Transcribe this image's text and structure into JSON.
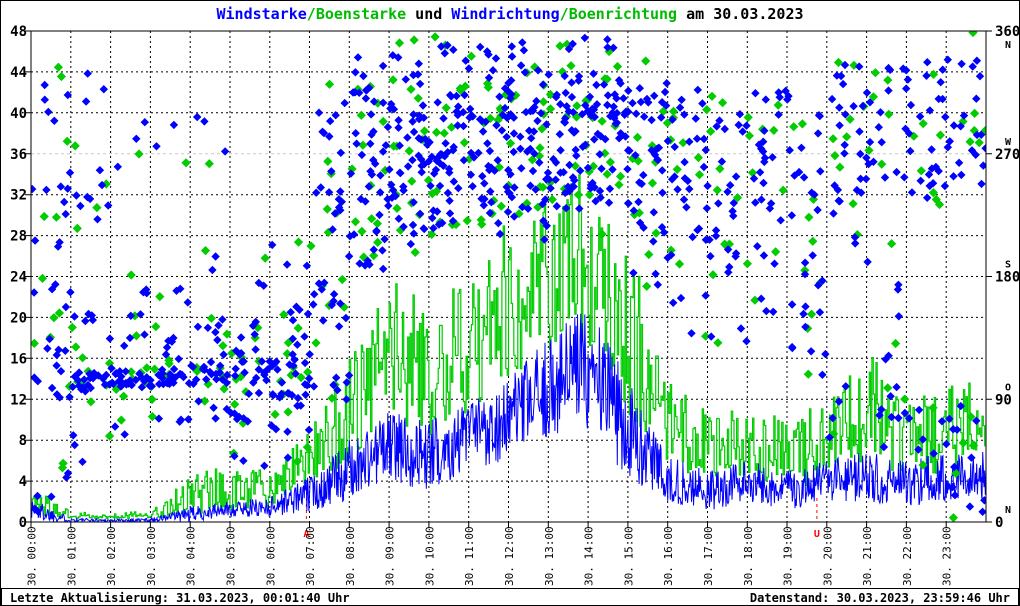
{
  "title": {
    "segments": [
      {
        "text": "Windstarke",
        "color": "#0000ff"
      },
      {
        "text": "/",
        "color": "#00bb00"
      },
      {
        "text": "Boenstarke",
        "color": "#00bb00"
      },
      {
        "text": " und ",
        "color": "#000000"
      },
      {
        "text": "Windrichtung",
        "color": "#0000ff"
      },
      {
        "text": "/",
        "color": "#00bb00"
      },
      {
        "text": "Boenrichtung",
        "color": "#00bb00"
      },
      {
        "text": " am 30.03.2023",
        "color": "#000000"
      }
    ]
  },
  "status_bar": {
    "left": "Letzte Aktualisierung: 31.03.2023, 00:01:40 Uhr",
    "right": "Datenstand: 30.03.2023, 23:59:46 Uhr"
  },
  "chart_data": {
    "type": "line+scatter",
    "date": "30.03.2023",
    "colors": {
      "wind": "#0000ff",
      "gust": "#00cc00",
      "grid": "#000000",
      "grid_light": "#c8c8c8",
      "sun_marker": "#ff0000",
      "axis": "#000000"
    },
    "left_axis": {
      "min": 0,
      "max": 48,
      "tick_step": 4,
      "tick_values": [
        0,
        4,
        8,
        12,
        16,
        20,
        24,
        28,
        32,
        36,
        40,
        44,
        48
      ]
    },
    "right_axis": {
      "min": 0,
      "max": 360,
      "ticks": [
        {
          "value": 360,
          "label": "360",
          "compass": "N",
          "compass_pos": "below"
        },
        {
          "value": 270,
          "label": "270",
          "compass": "W",
          "compass_pos": "above"
        },
        {
          "value": 180,
          "label": "180",
          "compass": "S",
          "compass_pos": "above"
        },
        {
          "value": 90,
          "label": "90",
          "compass": "O",
          "compass_pos": "above"
        },
        {
          "value": 0,
          "label": "0",
          "compass": "N",
          "compass_pos": "above"
        }
      ]
    },
    "x_axis": {
      "labels": [
        "30. 00:00",
        "30. 01:00",
        "30. 02:00",
        "30. 03:00",
        "30. 04:00",
        "30. 05:00",
        "30. 06:00",
        "30. 07:00",
        "30. 08:00",
        "30. 09:00",
        "30. 10:00",
        "30. 11:00",
        "30. 12:00",
        "30. 13:00",
        "30. 14:00",
        "30. 15:00",
        "30. 16:00",
        "30. 17:00",
        "30. 18:00",
        "30. 19:00",
        "30. 20:00",
        "30. 21:00",
        "30. 22:00",
        "30. 23:00"
      ]
    },
    "h_grid_values": [
      4,
      8,
      12,
      16,
      20,
      24,
      28,
      32,
      40,
      44
    ],
    "h_grid_light_values": [
      36
    ],
    "sun_markers": [
      {
        "label": "A",
        "hour": 6.92
      },
      {
        "label": "U",
        "hour": 19.75
      }
    ],
    "series": [
      {
        "name": "Windstarke",
        "type": "line",
        "color": "#0000ff",
        "axis": "left"
      },
      {
        "name": "Boenstarke",
        "type": "line",
        "color": "#00cc00",
        "axis": "left"
      },
      {
        "name": "Windrichtung",
        "type": "scatter",
        "color": "#0000ff",
        "axis": "right"
      },
      {
        "name": "Boenrichtung",
        "type": "scatter",
        "color": "#00cc00",
        "axis": "right"
      }
    ],
    "render_seed": 1337,
    "hourly": [
      {
        "hour": 0,
        "wind": [
          0,
          2.5
        ],
        "gust": [
          0.5,
          4
        ],
        "dirs": [
          [
            120,
            45,
            14
          ],
          [
            240,
            30,
            10
          ],
          [
            20,
            20,
            6
          ],
          [
            320,
            30,
            5
          ],
          [
            175,
            15,
            4
          ]
        ]
      },
      {
        "hour": 1,
        "wind": [
          0,
          0.4
        ],
        "gust": [
          0,
          1
        ],
        "dirs": [
          [
            105,
            8,
            22
          ],
          [
            150,
            20,
            6
          ],
          [
            240,
            20,
            8
          ],
          [
            60,
            15,
            3
          ],
          [
            300,
            40,
            3
          ]
        ]
      },
      {
        "hour": 2,
        "wind": [
          0,
          0.3
        ],
        "gust": [
          0,
          0.8
        ],
        "dirs": [
          [
            105,
            7,
            24
          ],
          [
            140,
            15,
            5
          ],
          [
            170,
            10,
            3
          ],
          [
            280,
            25,
            3
          ],
          [
            60,
            10,
            2
          ]
        ]
      },
      {
        "hour": 3,
        "wind": [
          0,
          0.4
        ],
        "gust": [
          0,
          1.2
        ],
        "dirs": [
          [
            105,
            8,
            20
          ],
          [
            130,
            12,
            6
          ],
          [
            75,
            10,
            4
          ],
          [
            170,
            8,
            3
          ],
          [
            285,
            15,
            2
          ]
        ]
      },
      {
        "hour": 4,
        "wind": [
          0,
          1.5
        ],
        "gust": [
          0.5,
          5
        ],
        "dirs": [
          [
            110,
            10,
            20
          ],
          [
            145,
            12,
            6
          ],
          [
            85,
            8,
            4
          ],
          [
            290,
            20,
            3
          ],
          [
            190,
            10,
            2
          ]
        ]
      },
      {
        "hour": 5,
        "wind": [
          0.5,
          2
        ],
        "gust": [
          1,
          5.5
        ],
        "dirs": [
          [
            110,
            15,
            18
          ],
          [
            80,
            12,
            6
          ],
          [
            140,
            15,
            6
          ],
          [
            45,
            10,
            3
          ],
          [
            175,
            10,
            2
          ]
        ]
      },
      {
        "hour": 6,
        "wind": [
          0.5,
          2.5
        ],
        "gust": [
          1.5,
          5
        ],
        "dirs": [
          [
            105,
            25,
            26
          ],
          [
            150,
            20,
            8
          ],
          [
            60,
            15,
            5
          ],
          [
            200,
            15,
            3
          ]
        ]
      },
      {
        "hour": 7,
        "wind": [
          1,
          4.5
        ],
        "gust": [
          2.5,
          9
        ],
        "dirs": [
          [
            150,
            40,
            14
          ],
          [
            230,
            40,
            12
          ],
          [
            290,
            30,
            8
          ],
          [
            100,
            15,
            6
          ]
        ]
      },
      {
        "hour": 8,
        "wind": [
          2,
          8
        ],
        "gust": [
          5,
          16
        ],
        "dirs": [
          [
            250,
            40,
            22
          ],
          [
            300,
            25,
            12
          ],
          [
            200,
            20,
            8
          ],
          [
            330,
            15,
            6
          ]
        ]
      },
      {
        "hour": 9,
        "wind": [
          4,
          11
        ],
        "gust": [
          9,
          24
        ],
        "dirs": [
          [
            260,
            40,
            24
          ],
          [
            300,
            25,
            14
          ],
          [
            220,
            20,
            8
          ],
          [
            335,
            12,
            6
          ]
        ]
      },
      {
        "hour": 10,
        "wind": [
          3,
          10
        ],
        "gust": [
          7,
          22
        ],
        "dirs": [
          [
            265,
            40,
            24
          ],
          [
            305,
            25,
            12
          ],
          [
            225,
            20,
            8
          ],
          [
            340,
            10,
            5
          ]
        ]
      },
      {
        "hour": 11,
        "wind": [
          5,
          12
        ],
        "gust": [
          11,
          26
        ],
        "dirs": [
          [
            270,
            40,
            26
          ],
          [
            310,
            25,
            12
          ],
          [
            230,
            20,
            8
          ],
          [
            345,
            8,
            4
          ]
        ]
      },
      {
        "hour": 12,
        "wind": [
          6,
          14
        ],
        "gust": [
          13,
          30
        ],
        "dirs": [
          [
            270,
            40,
            26
          ],
          [
            310,
            25,
            14
          ],
          [
            235,
            20,
            8
          ],
          [
            345,
            8,
            4
          ]
        ]
      },
      {
        "hour": 13,
        "wind": [
          8,
          18
        ],
        "gust": [
          16,
          34
        ],
        "dirs": [
          [
            275,
            40,
            26
          ],
          [
            315,
            22,
            14
          ],
          [
            240,
            18,
            8
          ],
          [
            350,
            6,
            3
          ]
        ]
      },
      {
        "hour": 14,
        "wind": [
          9,
          22
        ],
        "gust": [
          16,
          34
        ],
        "dirs": [
          [
            280,
            40,
            26
          ],
          [
            315,
            22,
            12
          ],
          [
            245,
            18,
            8
          ],
          [
            350,
            6,
            3
          ]
        ]
      },
      {
        "hour": 15,
        "wind": [
          4,
          14
        ],
        "gust": [
          9,
          28
        ],
        "dirs": [
          [
            275,
            45,
            22
          ],
          [
            310,
            25,
            10
          ],
          [
            230,
            25,
            8
          ],
          [
            180,
            15,
            3
          ]
        ]
      },
      {
        "hour": 16,
        "wind": [
          2,
          6.5
        ],
        "gust": [
          5,
          14
        ],
        "dirs": [
          [
            260,
            45,
            16
          ],
          [
            300,
            25,
            8
          ],
          [
            200,
            25,
            6
          ],
          [
            160,
            15,
            4
          ]
        ]
      },
      {
        "hour": 17,
        "wind": [
          1,
          5
        ],
        "gust": [
          4,
          11
        ],
        "dirs": [
          [
            255,
            50,
            14
          ],
          [
            300,
            25,
            6
          ],
          [
            190,
            25,
            5
          ],
          [
            140,
            15,
            3
          ]
        ]
      },
      {
        "hour": 18,
        "wind": [
          2,
          6
        ],
        "gust": [
          4,
          12
        ],
        "dirs": [
          [
            260,
            45,
            14
          ],
          [
            305,
            22,
            6
          ],
          [
            210,
            22,
            5
          ],
          [
            160,
            12,
            3
          ]
        ]
      },
      {
        "hour": 19,
        "wind": [
          1,
          5
        ],
        "gust": [
          3,
          10
        ],
        "dirs": [
          [
            250,
            50,
            12
          ],
          [
            170,
            25,
            8
          ],
          [
            130,
            20,
            6
          ],
          [
            300,
            20,
            4
          ]
        ]
      },
      {
        "hour": 20,
        "wind": [
          2,
          6
        ],
        "gust": [
          4,
          12
        ],
        "dirs": [
          [
            270,
            45,
            14
          ],
          [
            320,
            20,
            8
          ],
          [
            220,
            20,
            5
          ],
          [
            90,
            25,
            4
          ]
        ]
      },
      {
        "hour": 21,
        "wind": [
          2,
          7
        ],
        "gust": [
          6,
          17
        ],
        "dirs": [
          [
            280,
            40,
            12
          ],
          [
            90,
            35,
            10
          ],
          [
            320,
            20,
            6
          ],
          [
            180,
            25,
            4
          ]
        ]
      },
      {
        "hour": 22,
        "wind": [
          1.5,
          6
        ],
        "gust": [
          4,
          12
        ],
        "dirs": [
          [
            290,
            40,
            14
          ],
          [
            250,
            20,
            6
          ],
          [
            70,
            30,
            6
          ],
          [
            330,
            15,
            4
          ]
        ]
      },
      {
        "hour": 23,
        "wind": [
          2,
          7
        ],
        "gust": [
          4,
          14
        ],
        "dirs": [
          [
            300,
            30,
            12
          ],
          [
            20,
            25,
            8
          ],
          [
            70,
            20,
            6
          ],
          [
            260,
            20,
            5
          ],
          [
            340,
            12,
            4
          ]
        ]
      }
    ]
  }
}
